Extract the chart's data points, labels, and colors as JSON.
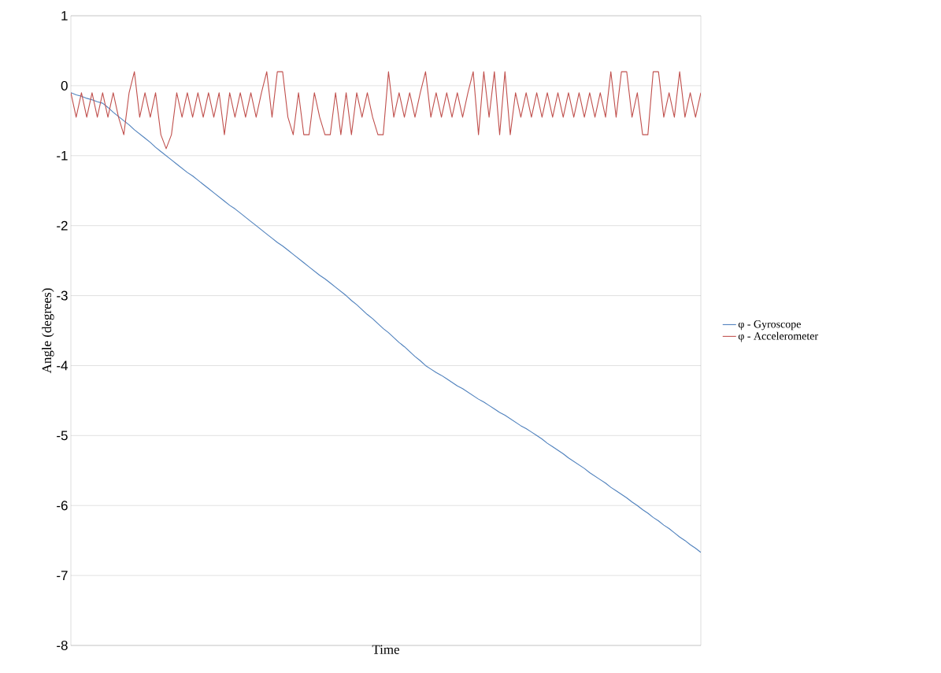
{
  "chart_data": {
    "type": "line",
    "xlabel": "Time",
    "ylabel": "Angle (degrees)",
    "categories": [
      null,
      null,
      null,
      null,
      null,
      null,
      null,
      null,
      null,
      null,
      null,
      null,
      null,
      null,
      null,
      null,
      null,
      null,
      null,
      null,
      null,
      null,
      null,
      null,
      null,
      null,
      null,
      null,
      null,
      null,
      null,
      null,
      null,
      null,
      null,
      null,
      null,
      null,
      null,
      null,
      null,
      null,
      null,
      null,
      null,
      null,
      null,
      null,
      null,
      null,
      null,
      null,
      null,
      null,
      null,
      null,
      null,
      null,
      null,
      null,
      null,
      null,
      null,
      null,
      null,
      null,
      null,
      null,
      null,
      null,
      null,
      null,
      null,
      null,
      null,
      null,
      null,
      null,
      null,
      null,
      null,
      null,
      null,
      null,
      null,
      null,
      null,
      null,
      null,
      null,
      null,
      null,
      null,
      null,
      null,
      null,
      null,
      null,
      null,
      null,
      null,
      null,
      null,
      null,
      null,
      null,
      null,
      null,
      null,
      null,
      null,
      null,
      null,
      null,
      null,
      null,
      null,
      null,
      null,
      null
    ],
    "series": [
      {
        "name": "φ - Gyroscope",
        "color": "#4f81bd",
        "values": [
          -0.1,
          -0.13,
          -0.15,
          -0.18,
          -0.2,
          -0.23,
          -0.25,
          -0.31,
          -0.38,
          -0.44,
          -0.5,
          -0.56,
          -0.63,
          -0.69,
          -0.75,
          -0.81,
          -0.88,
          -0.94,
          -1.0,
          -1.06,
          -1.12,
          -1.18,
          -1.24,
          -1.29,
          -1.35,
          -1.41,
          -1.47,
          -1.53,
          -1.59,
          -1.65,
          -1.71,
          -1.76,
          -1.82,
          -1.88,
          -1.94,
          -2.0,
          -2.06,
          -2.12,
          -2.18,
          -2.24,
          -2.29,
          -2.35,
          -2.41,
          -2.47,
          -2.53,
          -2.59,
          -2.65,
          -2.71,
          -2.76,
          -2.82,
          -2.88,
          -2.94,
          -3.0,
          -3.07,
          -3.13,
          -3.2,
          -3.27,
          -3.33,
          -3.4,
          -3.47,
          -3.53,
          -3.6,
          -3.67,
          -3.73,
          -3.8,
          -3.87,
          -3.93,
          -4.0,
          -4.05,
          -4.1,
          -4.14,
          -4.19,
          -4.24,
          -4.29,
          -4.33,
          -4.38,
          -4.43,
          -4.48,
          -4.52,
          -4.57,
          -4.62,
          -4.67,
          -4.71,
          -4.76,
          -4.81,
          -4.86,
          -4.9,
          -4.95,
          -5.0,
          -5.05,
          -5.11,
          -5.16,
          -5.21,
          -5.26,
          -5.32,
          -5.37,
          -5.42,
          -5.47,
          -5.53,
          -5.58,
          -5.63,
          -5.68,
          -5.74,
          -5.79,
          -5.84,
          -5.89,
          -5.95,
          -6.0,
          -6.06,
          -6.11,
          -6.17,
          -6.22,
          -6.28,
          -6.33,
          -6.39,
          -6.45,
          -6.5,
          -6.56,
          -6.61,
          -6.67
        ]
      },
      {
        "name": "φ - Accelerometer",
        "color": "#c0504d",
        "values": [
          -0.1,
          -0.45,
          -0.1,
          -0.45,
          -0.1,
          -0.45,
          -0.1,
          -0.45,
          -0.1,
          -0.45,
          -0.7,
          -0.1,
          0.2,
          -0.45,
          -0.1,
          -0.45,
          -0.1,
          -0.7,
          -0.9,
          -0.7,
          -0.1,
          -0.45,
          -0.1,
          -0.45,
          -0.1,
          -0.45,
          -0.1,
          -0.45,
          -0.1,
          -0.7,
          -0.1,
          -0.45,
          -0.1,
          -0.45,
          -0.1,
          -0.45,
          -0.1,
          0.2,
          -0.45,
          0.2,
          0.2,
          -0.45,
          -0.7,
          -0.1,
          -0.7,
          -0.7,
          -0.1,
          -0.45,
          -0.7,
          -0.7,
          -0.1,
          -0.7,
          -0.1,
          -0.7,
          -0.1,
          -0.45,
          -0.1,
          -0.45,
          -0.7,
          -0.7,
          0.2,
          -0.45,
          -0.1,
          -0.45,
          -0.1,
          -0.45,
          -0.1,
          0.2,
          -0.45,
          -0.1,
          -0.45,
          -0.1,
          -0.45,
          -0.1,
          -0.45,
          -0.1,
          0.2,
          -0.7,
          0.2,
          -0.45,
          0.2,
          -0.7,
          0.2,
          -0.7,
          -0.1,
          -0.45,
          -0.1,
          -0.45,
          -0.1,
          -0.45,
          -0.1,
          -0.45,
          -0.1,
          -0.45,
          -0.1,
          -0.45,
          -0.1,
          -0.45,
          -0.1,
          -0.45,
          -0.1,
          -0.45,
          0.2,
          -0.45,
          0.2,
          0.2,
          -0.45,
          -0.1,
          -0.7,
          -0.7,
          0.2,
          0.2,
          -0.45,
          -0.1,
          -0.45,
          0.2,
          -0.45,
          -0.1,
          -0.45,
          -0.1
        ]
      }
    ],
    "ylim": [
      -8,
      1
    ],
    "yticks": [
      -8,
      -7,
      -6,
      -5,
      -4,
      -3,
      -2,
      -1,
      0,
      1
    ],
    "grid": "y",
    "legend": "right",
    "tick_labels": "y"
  }
}
